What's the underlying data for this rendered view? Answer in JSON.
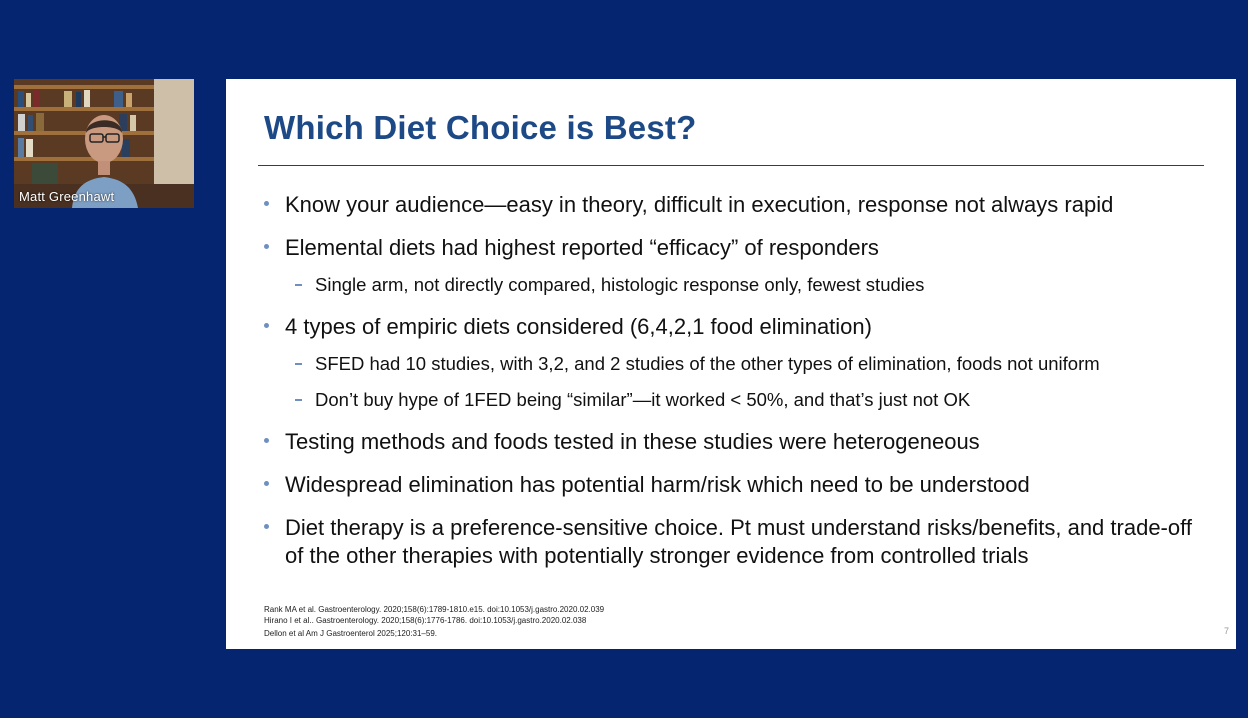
{
  "video": {
    "participant_name": "Matt Greenhawt"
  },
  "slide": {
    "title": "Which Diet Choice is Best?",
    "bullets": [
      {
        "text": "Know your audience—easy in theory, difficult in execution, response not always rapid"
      },
      {
        "text": "Elemental diets had highest reported “efficacy” of responders"
      },
      {
        "sub": "Single arm, not directly compared, histologic response only, fewest studies"
      },
      {
        "text": "4 types of empiric diets considered (6,4,2,1 food elimination)"
      },
      {
        "sub": "SFED had 10 studies, with 3,2, and 2 studies of the other types of elimination, foods not uniform"
      },
      {
        "sub": "Don’t buy hype of 1FED being “similar”—it worked < 50%, and that’s just not OK"
      },
      {
        "text": "Testing methods and foods tested in these studies were heterogeneous"
      },
      {
        "text": "Widespread elimination has potential harm/risk which need to be understood"
      },
      {
        "text": "Diet therapy is a preference-sensitive choice.  Pt must understand risks/benefits, and trade-off of the other therapies with potentially stronger evidence from controlled trials"
      }
    ],
    "references": [
      "Rank MA et al. Gastroenterology. 2020;158(6):1789-1810.e15. doi:10.1053/j.gastro.2020.02.039",
      "Hirano I et al.. Gastroenterology. 2020;158(6):1776-1786. doi:10.1053/j.gastro.2020.02.038",
      "Dellon et al Am J Gastroenterol 2025;120:31–59."
    ],
    "page_number": "7"
  },
  "colors": {
    "background": "#052571",
    "title": "#1d4a86",
    "bullet_marker": "#6f8fc0"
  }
}
